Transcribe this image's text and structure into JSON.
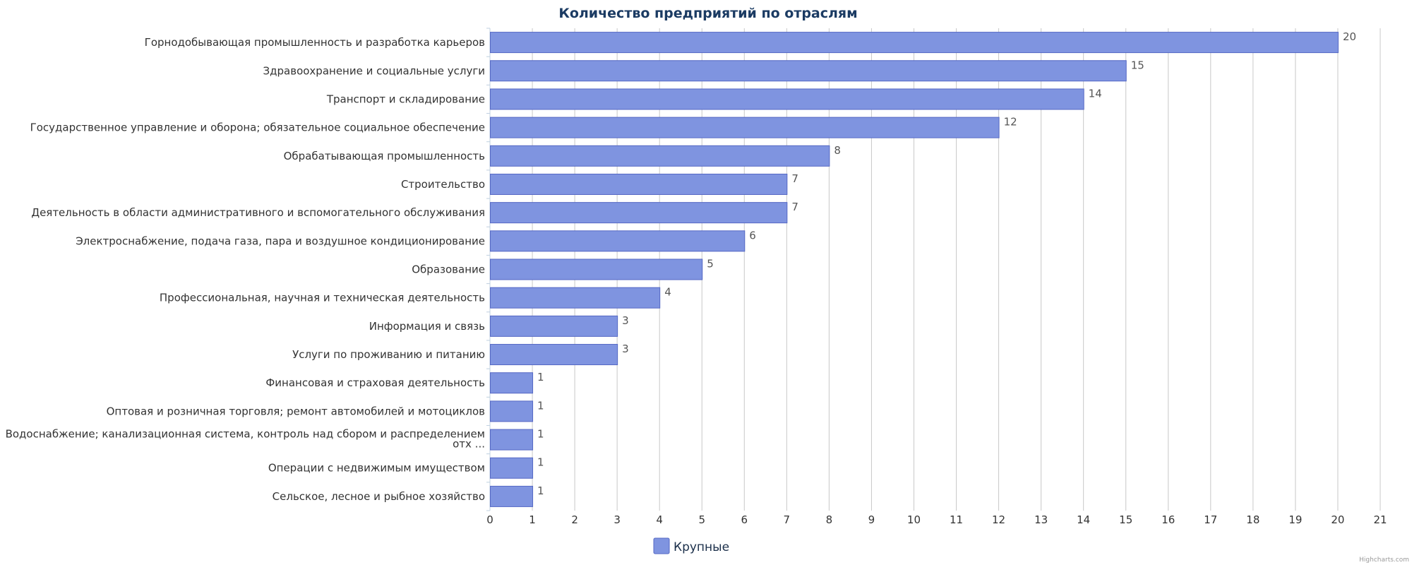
{
  "chart_data": {
    "type": "bar",
    "orientation": "horizontal",
    "title": "Количество предприятий по отраслям",
    "categories": [
      "Горнодобывающая промышленность и разработка карьеров",
      "Здравоохранение и социальные услуги",
      "Транспорт и складирование",
      "Государственное управление и оборона; обязательное социальное обеспечение",
      "Обрабатывающая промышленность",
      "Строительство",
      "Деятельность в области административного и вспомогательного обслуживания",
      "Электроснабжение, подача газа, пара и воздушное кондиционирование",
      "Образование",
      "Профессиональная, научная и техническая деятельность",
      "Информация и связь",
      "Услуги по проживанию и питанию",
      "Финансовая и страховая деятельность",
      "Оптовая и розничная торговля; ремонт автомобилей и мотоциклов",
      "Водоснабжение; канализационная система, контроль над сбором и распределением\nотх ...",
      "Операции с недвижимым имуществом",
      "Сельское, лесное и рыбное хозяйство"
    ],
    "series": [
      {
        "name": "Крупные",
        "color": "#7f94e0",
        "border_color": "#5568c4",
        "values": [
          20,
          15,
          14,
          12,
          8,
          7,
          7,
          6,
          5,
          4,
          3,
          3,
          1,
          1,
          1,
          1,
          1
        ]
      }
    ],
    "xlim": [
      0,
      21
    ],
    "ticks": [
      "0",
      "1",
      "2",
      "3",
      "4",
      "5",
      "6",
      "7",
      "8",
      "9",
      "10",
      "11",
      "12",
      "13",
      "14",
      "15",
      "16",
      "17",
      "18",
      "19",
      "20",
      "21"
    ],
    "grid": true,
    "data_labels": true,
    "legend_position": "bottom-center",
    "credits": "Highcharts.com"
  }
}
